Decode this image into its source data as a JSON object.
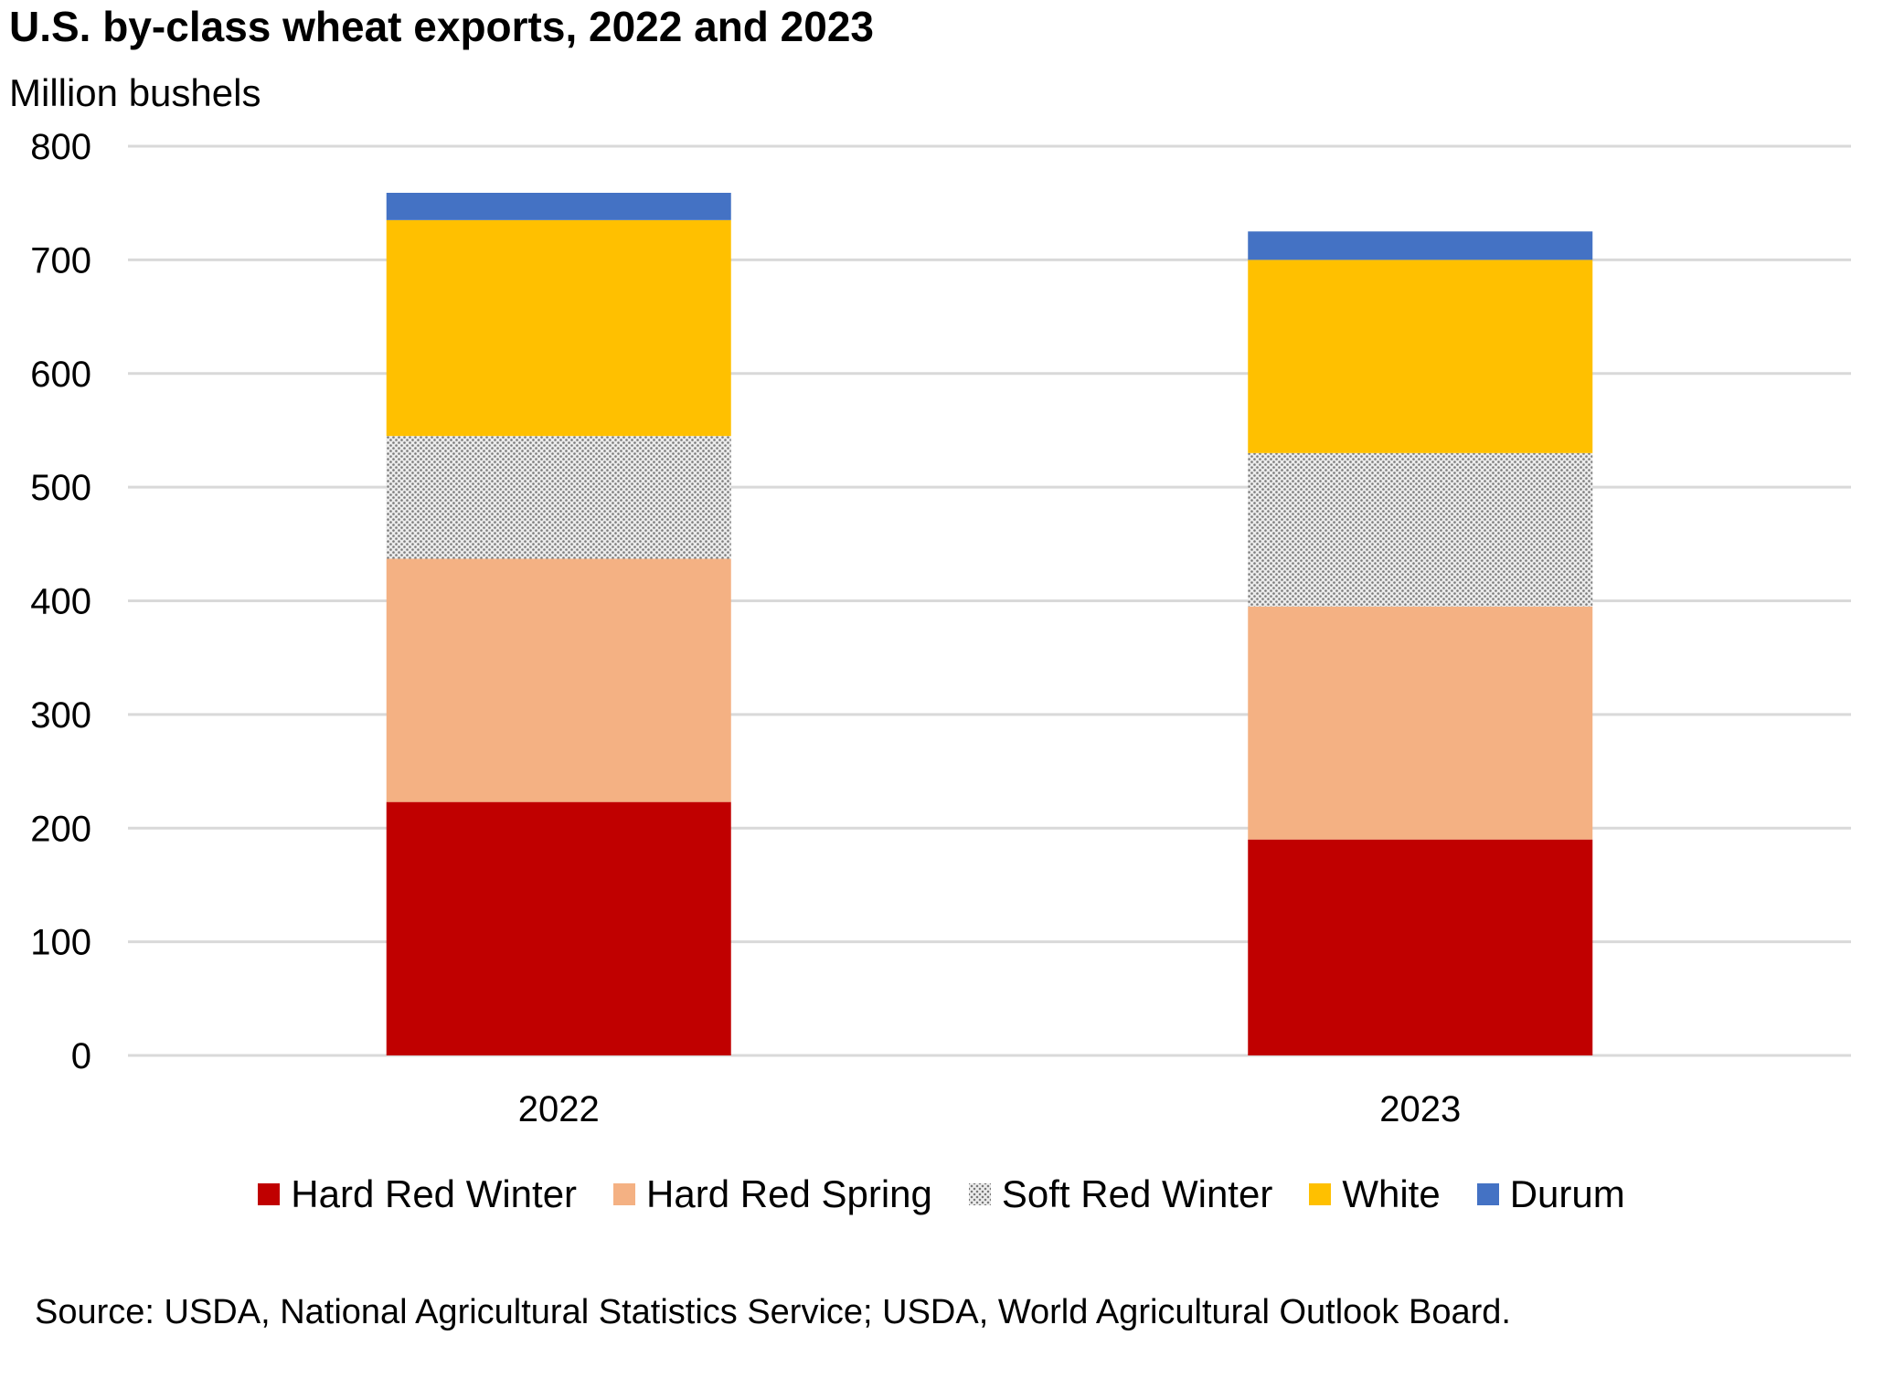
{
  "chart_data": {
    "type": "bar",
    "stacked": true,
    "title": "U.S. by-class wheat exports, 2022 and 2023",
    "ylabel": "Million bushels",
    "xlabel": "",
    "ylim": [
      0,
      800
    ],
    "yticks": [
      0,
      100,
      200,
      300,
      400,
      500,
      600,
      700,
      800
    ],
    "grid": true,
    "legend_position": "bottom",
    "categories": [
      "2022",
      "2023"
    ],
    "series": [
      {
        "name": "Hard Red Winter",
        "color": "#c00000",
        "pattern": "solid",
        "values": [
          223,
          190
        ]
      },
      {
        "name": "Hard Red Spring",
        "color": "#f4b183",
        "pattern": "solid",
        "values": [
          214,
          205
        ]
      },
      {
        "name": "Soft Red Winter",
        "color": "#bfbfbf",
        "pattern": "dotted",
        "values": [
          108,
          135
        ]
      },
      {
        "name": "White",
        "color": "#ffc000",
        "pattern": "solid",
        "values": [
          190,
          170
        ]
      },
      {
        "name": "Durum",
        "color": "#4472c4",
        "pattern": "solid",
        "values": [
          24,
          25
        ]
      }
    ]
  },
  "source": "Source: USDA, National Agricultural Statistics Service; USDA, World Agricultural Outlook Board."
}
